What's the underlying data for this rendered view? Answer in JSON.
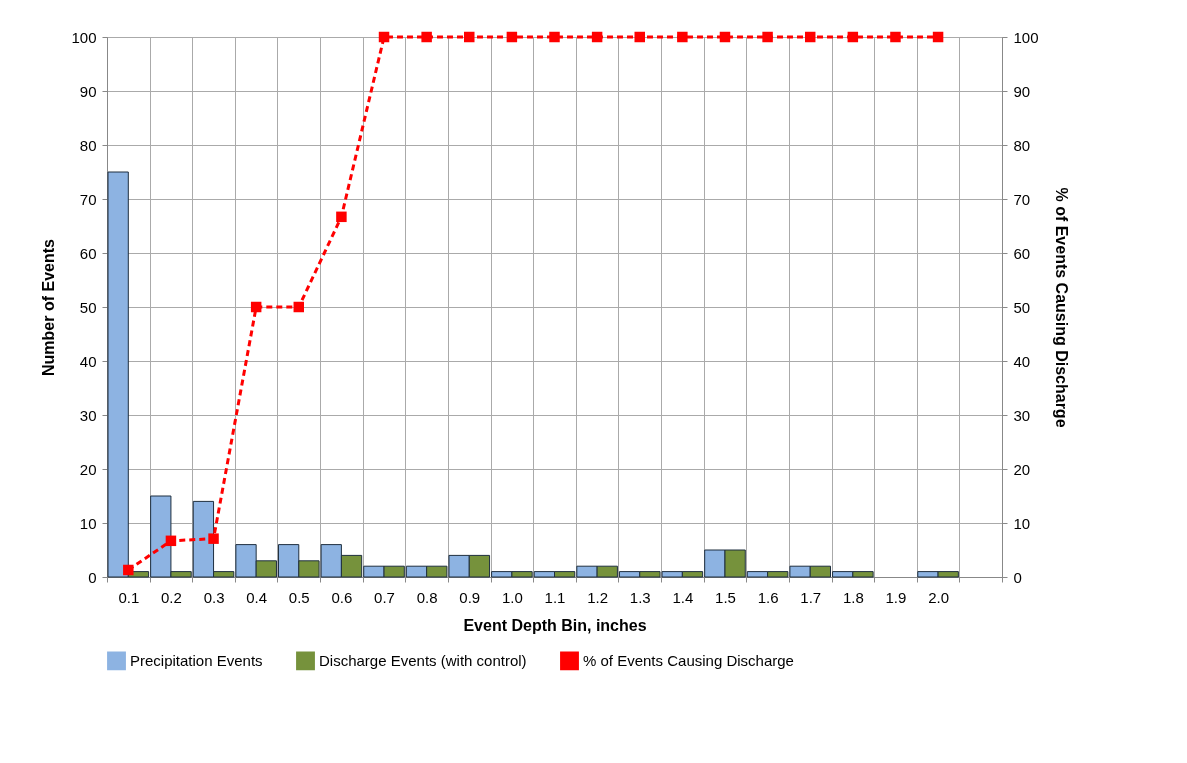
{
  "chart_data": {
    "type": "bar",
    "xlabel": "Event Depth Bin, inches",
    "ylabel": "Number of Events",
    "y2label": "% of Events Causing Discharge",
    "categories": [
      "0.1",
      "0.2",
      "0.3",
      "0.4",
      "0.5",
      "0.6",
      "0.7",
      "0.8",
      "0.9",
      "1.0",
      "1.1",
      "1.2",
      "1.3",
      "1.4",
      "1.5",
      "1.6",
      "1.7",
      "1.8",
      "1.9",
      "2.0",
      null
    ],
    "series": [
      {
        "name": "Precipitation Events",
        "color": "#8db3e2",
        "values": [
          75,
          15,
          14,
          6,
          6,
          6,
          2,
          2,
          4,
          1,
          1,
          2,
          1,
          1,
          5,
          1,
          2,
          1,
          null,
          1,
          null
        ]
      },
      {
        "name": "Discharge Events (with control)",
        "color": "#76923c",
        "values": [
          1,
          1,
          1,
          3,
          3,
          4,
          2,
          2,
          4,
          1,
          1,
          2,
          1,
          1,
          5,
          1,
          2,
          1,
          null,
          1,
          null
        ]
      },
      {
        "name": "% of Events Causing Discharge",
        "type": "line",
        "axis": "y2",
        "color": "#ff0000",
        "line_style": "dashed",
        "marker": "square",
        "values": [
          1.3,
          6.7,
          7.1,
          50,
          50,
          66.7,
          100,
          100,
          100,
          100,
          100,
          100,
          100,
          100,
          100,
          100,
          100,
          100,
          100,
          100,
          null
        ]
      }
    ],
    "ylim": [
      0,
      100
    ],
    "yticks": [
      0,
      10,
      20,
      30,
      40,
      50,
      60,
      70,
      80,
      90,
      100
    ],
    "y2lim": [
      0,
      100
    ],
    "y2ticks": [
      0,
      10,
      20,
      30,
      40,
      50,
      60,
      70,
      80,
      90,
      100
    ],
    "grid": true,
    "legend": "bottom"
  }
}
